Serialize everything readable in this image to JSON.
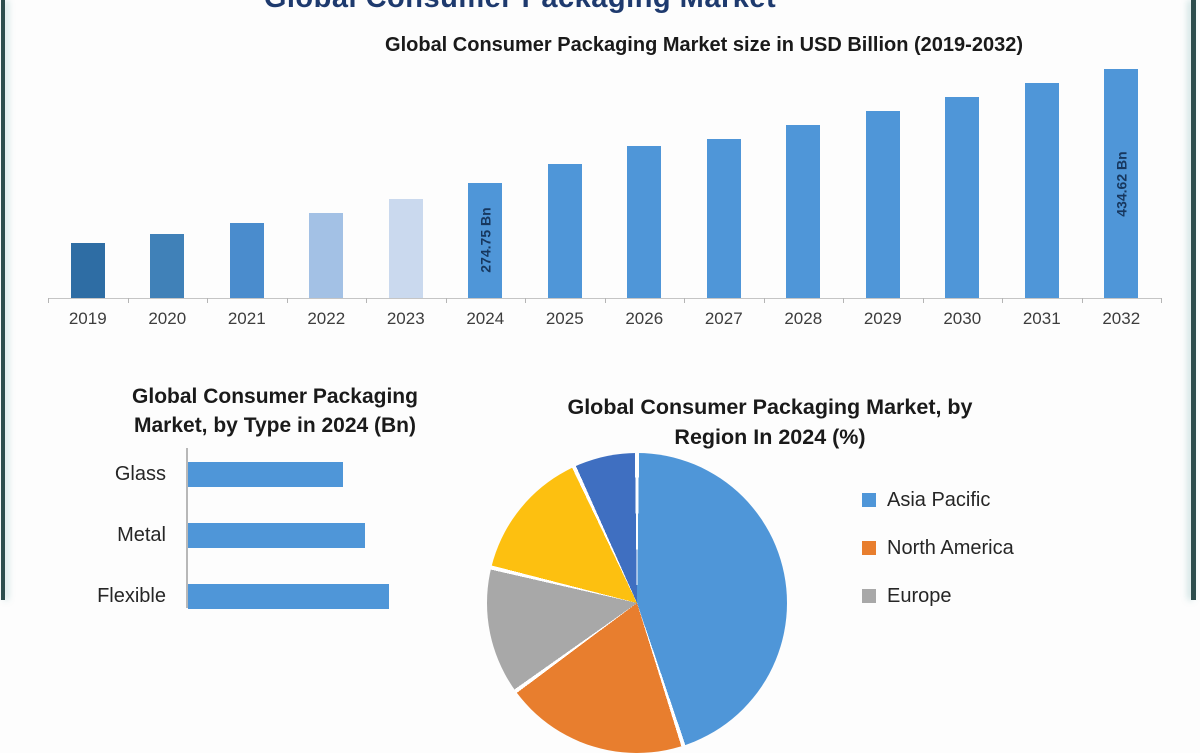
{
  "page": {
    "header_title": "Global Consumer Packaging Market",
    "frame_color": "#2d4d4d",
    "background": "#fdfdfd"
  },
  "chart_data": [
    {
      "id": "market-size-bar",
      "type": "bar",
      "title": "Global Consumer Packaging Market size in USD Billion (2019-2032)",
      "ylabel": "USD Billion",
      "categories": [
        "2019",
        "2020",
        "2021",
        "2022",
        "2023",
        "2024",
        "2025",
        "2026",
        "2027",
        "2028",
        "2029",
        "2030",
        "2031",
        "2032"
      ],
      "values": [
        190.1,
        202.8,
        217.5,
        232.4,
        251.8,
        274.75,
        301.1,
        326.5,
        335.9,
        355.7,
        375.8,
        396.0,
        414.9,
        434.62
      ],
      "values_note": "only 2024 and 2032 carry data labels in the image; other values estimated from bar heights",
      "data_labels": {
        "2024": "274.75 Bn",
        "2032": "434.62 Bn"
      },
      "bar_colors": [
        "#2e6da4",
        "#4081b8",
        "#4a8ccd",
        "#a3c1e5",
        "#cad9ee",
        "#4f96d8",
        "#4f96d8",
        "#4f96d8",
        "#4f96d8",
        "#4f96d8",
        "#4f96d8",
        "#4f96d8",
        "#4f96d8",
        "#4f96d8"
      ],
      "ylim": [
        112,
        460
      ],
      "grid": false,
      "legend": "none"
    },
    {
      "id": "by-type-bar",
      "type": "bar",
      "orientation": "horizontal",
      "title": "Global Consumer Packaging Market, by Type in 2024 (Bn)",
      "categories": [
        "Glass",
        "Metal",
        "Flexible"
      ],
      "relative_values": [
        0.77,
        0.88,
        1.0
      ],
      "values_note": "bars carry no labels; chart is cropped by the bottom edge of the screenshot",
      "bar_color": "#4f96d8"
    },
    {
      "id": "by-region-pie",
      "type": "pie",
      "title": "Global Consumer Packaging Market, by Region In 2024 (%)",
      "legend_position": "right",
      "slices": [
        {
          "label": "Asia Pacific",
          "color": "#4f96d8",
          "pct": 45.0
        },
        {
          "label": "North America",
          "color": "#e87e2e",
          "pct": 20.0
        },
        {
          "label": "Europe",
          "color": "#a8a8a8",
          "pct": 13.8
        },
        {
          "label": "",
          "color": "#fdc010",
          "pct": 14.3
        },
        {
          "label": "",
          "color": "#3f6fc1",
          "pct": 6.9
        }
      ],
      "slices_note": "pie and legend cropped at bottom edge; only three legend labels visible; percentages estimated from visible arc angles"
    }
  ]
}
